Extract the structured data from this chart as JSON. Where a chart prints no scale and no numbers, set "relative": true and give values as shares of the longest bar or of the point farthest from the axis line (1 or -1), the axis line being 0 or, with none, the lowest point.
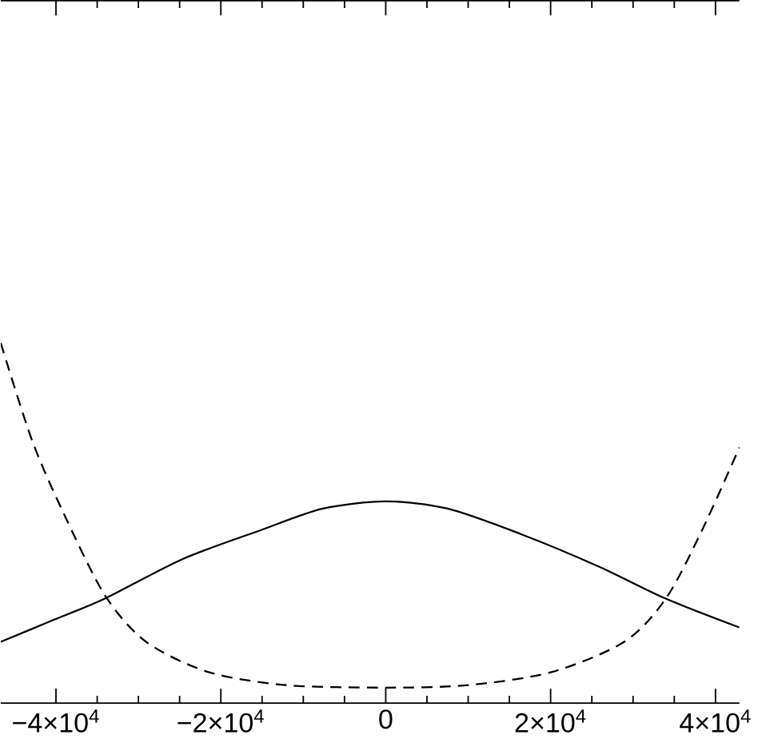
{
  "chart_data": {
    "type": "line",
    "relative": true,
    "xlim": [
      -46700,
      42900
    ],
    "xticks": [
      {
        "value": -40000,
        "label": "−4×10$^{4}$"
      },
      {
        "value": -20000,
        "label": "−2×10$^{4}$"
      },
      0,
      {
        "value": 20000,
        "label": "2×10$^{4}$"
      },
      {
        "value": 40000,
        "label": "4×10$^{4}$"
      }
    ],
    "tick_labels": "x",
    "grid": false,
    "marker": "none",
    "series": [
      {
        "color": "#000000",
        "line_style": "solid",
        "x": [
          -46700,
          -40400,
          -34080,
          -24630,
          -15180,
          -7620,
          0,
          7500,
          16310,
          25760,
          33970,
          42900
        ],
        "values": [
          0.17,
          0.23,
          0.29,
          0.4,
          0.48,
          0.54,
          0.56,
          0.54,
          0.47,
          0.38,
          0.29,
          0.21
        ]
      },
      {
        "color": "#000000",
        "line_style": "dashed",
        "x": [
          -46700,
          -42910,
          -39130,
          -34080,
          -29050,
          -21490,
          -12040,
          0,
          10020,
          20100,
          28920,
          33970,
          38370,
          42900
        ],
        "values": [
          1,
          0.73,
          0.53,
          0.3,
          0.17,
          0.086,
          0.05,
          0.043,
          0.05,
          0.086,
          0.17,
          0.29,
          0.48,
          0.71
        ]
      }
    ]
  }
}
